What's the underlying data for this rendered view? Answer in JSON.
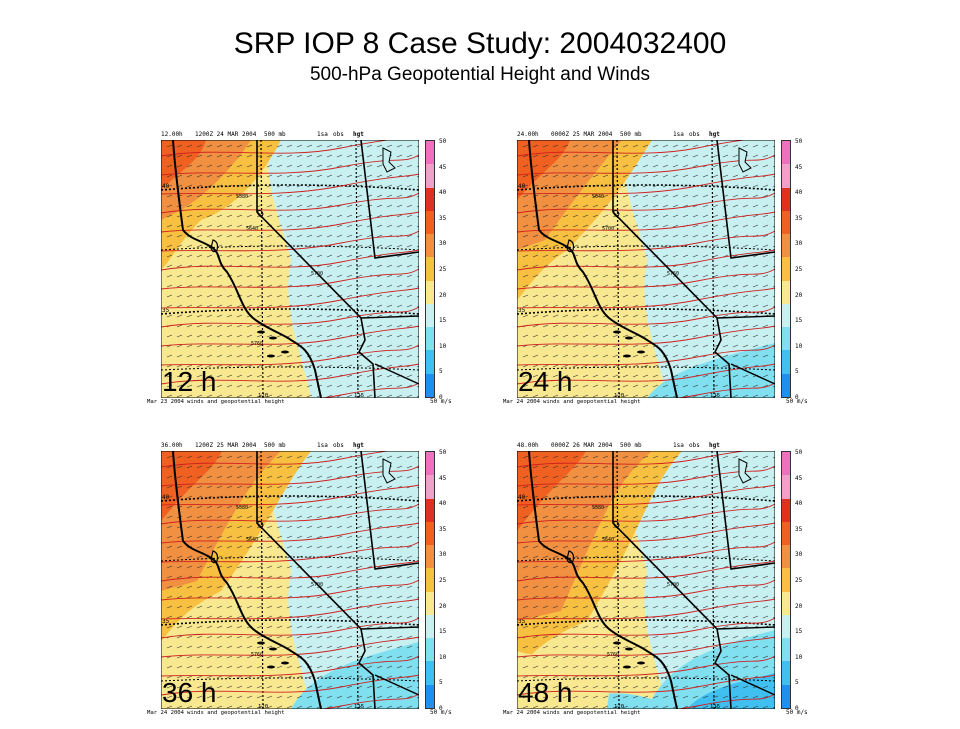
{
  "title": "SRP IOP 8 Case Study: 2004032400",
  "subtitle": "500-hPa Geopotential Height and Winds",
  "panels": [
    {
      "label": "12 h",
      "header": {
        "lead": "12.00h",
        "valid": "1200Z 24 MAR 2004",
        "level": "500 mb",
        "src": "1sa",
        "obs": "obs",
        "var": "hgt"
      },
      "footer": {
        "date": "Mar 23 2004",
        "desc": "winds and geopotential height",
        "lon1": "120",
        "lon2": "115"
      },
      "contours": [
        "5580",
        "5640",
        "5700",
        "5760"
      ]
    },
    {
      "label": "24 h",
      "header": {
        "lead": "24.00h",
        "valid": "0000Z 25 MAR 2004",
        "level": "500 mb",
        "src": "1sa",
        "obs": "obs",
        "var": "hgt"
      },
      "footer": {
        "date": "Mar 24 2004",
        "desc": "winds and geopotential height",
        "lon1": "120",
        "lon2": "115"
      },
      "contours": [
        "5640",
        "5700",
        "5760"
      ]
    },
    {
      "label": "36 h",
      "header": {
        "lead": "36.00h",
        "valid": "1200Z 25 MAR 2004",
        "level": "500 mb",
        "src": "1sa",
        "obs": "obs",
        "var": "hgt"
      },
      "footer": {
        "date": "Mar 24 2004",
        "desc": "winds and geopotential height",
        "lon1": "120",
        "lon2": "115"
      },
      "contours": [
        "5580",
        "5640",
        "5700",
        "5760"
      ]
    },
    {
      "label": "48 h",
      "header": {
        "lead": "48.00h",
        "valid": "0000Z 26 MAR 2004",
        "level": "500 mb",
        "src": "1sa",
        "obs": "obs",
        "var": "hgt"
      },
      "footer": {
        "date": "Mar 24 2004",
        "desc": "winds and geopotential height",
        "lon1": "120",
        "lon2": "115"
      },
      "contours": [
        "5580",
        "5640",
        "5700",
        "5760"
      ]
    }
  ],
  "lat_labels": [
    "40",
    "35"
  ],
  "colorbar": {
    "ticks": [
      "50",
      "45",
      "40",
      "35",
      "30",
      "25",
      "20",
      "15",
      "10",
      "5",
      "0"
    ],
    "units": "50 m/s",
    "colors": [
      "#f070c0",
      "#f0a0c8",
      "#e03020",
      "#f06020",
      "#f09040",
      "#f8c040",
      "#f8e890",
      "#c8f0f0",
      "#80e0f0",
      "#40c0f0",
      "#2090f0"
    ]
  }
}
